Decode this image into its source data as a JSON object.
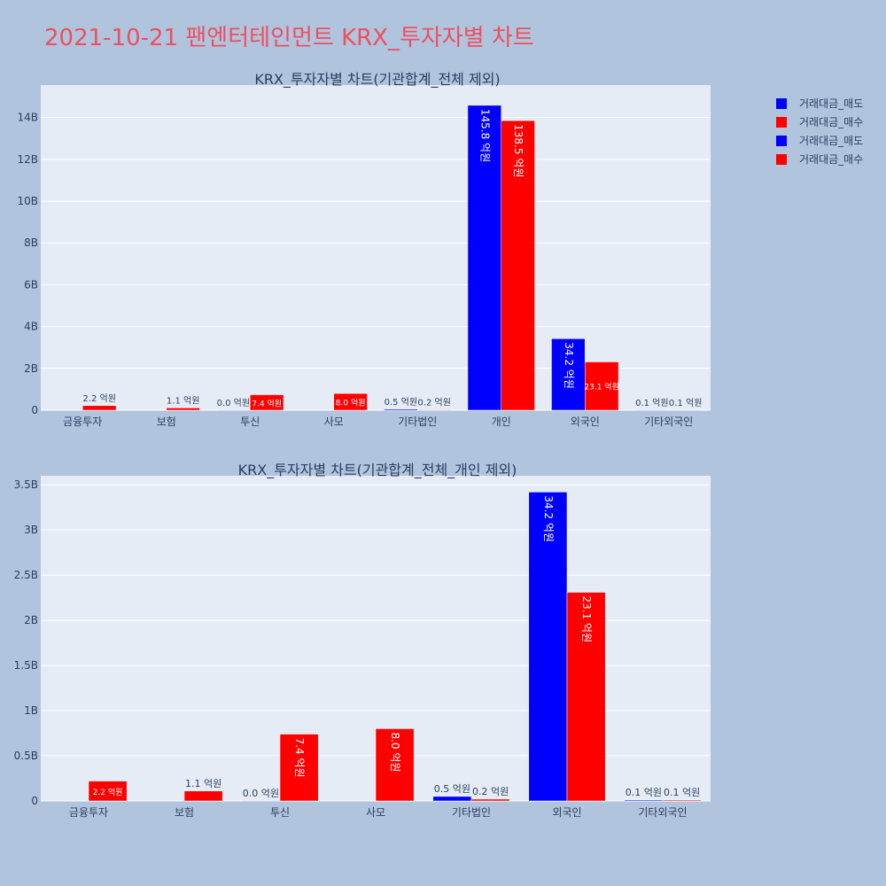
{
  "page": {
    "title": "2021-10-21 팬엔터테인먼트 KRX_투자자별 차트"
  },
  "legend": {
    "items": [
      {
        "label": "거래대금_매도",
        "color": "#0000ff"
      },
      {
        "label": "거래대금_매수",
        "color": "#ff0000"
      },
      {
        "label": "거래대금_매도",
        "color": "#0000ff"
      },
      {
        "label": "거래대금_매수",
        "color": "#ff0000"
      }
    ]
  },
  "chart_data": [
    {
      "type": "bar",
      "title": "KRX_투자자별 차트(기관합계_전체 제외)",
      "categories": [
        "금융투자",
        "보험",
        "투신",
        "사모",
        "기타법인",
        "개인",
        "외국인",
        "기타외국인"
      ],
      "series": [
        {
          "name": "거래대금_매도",
          "color": "#0000ff",
          "values": [
            0,
            0,
            1000000,
            0,
            50000000,
            14580000000,
            3420000000,
            10000000
          ],
          "labels": [
            "",
            "",
            "0.0 억원",
            "",
            "0.5 억원",
            "145.8 억원",
            "34.2 억원",
            "0.1 억원"
          ]
        },
        {
          "name": "거래대금_매수",
          "color": "#ff0000",
          "values": [
            220000000,
            110000000,
            740000000,
            800000000,
            20000000,
            13850000000,
            2310000000,
            10000000
          ],
          "labels": [
            "2.2 억원",
            "1.1 억원",
            "7.4 억원",
            "8.0 억원",
            "0.2 억원",
            "138.5 억원",
            "23.1 억원",
            "0.1 억원"
          ]
        }
      ],
      "yticks": [
        0,
        2000000000,
        4000000000,
        6000000000,
        8000000000,
        10000000000,
        12000000000,
        14000000000
      ],
      "ytick_labels": [
        "0",
        "2B",
        "4B",
        "6B",
        "8B",
        "10B",
        "12B",
        "14B"
      ],
      "ylim": [
        0,
        15550000000
      ],
      "grid": true
    },
    {
      "type": "bar",
      "title": "KRX_투자자별 차트(기관합계_전체_개인 제외)",
      "categories": [
        "금융투자",
        "보험",
        "투신",
        "사모",
        "기타법인",
        "외국인",
        "기타외국인"
      ],
      "series": [
        {
          "name": "거래대금_매도",
          "color": "#0000ff",
          "values": [
            0,
            0,
            1000000,
            0,
            50000000,
            3420000000,
            10000000
          ],
          "labels": [
            "",
            "",
            "0.0 억원",
            "",
            "0.5 억원",
            "34.2 억원",
            "0.1 억원"
          ]
        },
        {
          "name": "거래대금_매수",
          "color": "#ff0000",
          "values": [
            220000000,
            110000000,
            740000000,
            800000000,
            20000000,
            2310000000,
            10000000
          ],
          "labels": [
            "2.2 억원",
            "1.1 억원",
            "7.4 억원",
            "8.0 억원",
            "0.2 억원",
            "23.1 억원",
            "0.1 억원"
          ]
        }
      ],
      "yticks": [
        0,
        500000000,
        1000000000,
        1500000000,
        2000000000,
        2500000000,
        3000000000,
        3500000000
      ],
      "ytick_labels": [
        "0",
        "0.5B",
        "1B",
        "1.5B",
        "2B",
        "2.5B",
        "3B",
        "3.5B"
      ],
      "ylim": [
        0,
        3600000000
      ],
      "grid": true
    }
  ]
}
